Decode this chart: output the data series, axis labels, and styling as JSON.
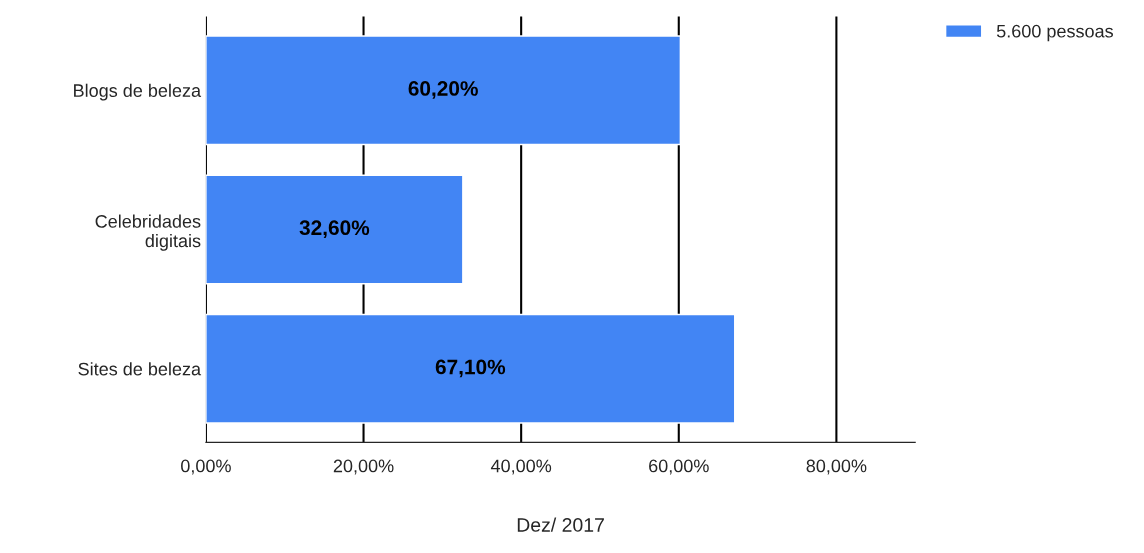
{
  "chart_data": {
    "type": "bar",
    "orientation": "horizontal",
    "categories": [
      "Blogs de beleza",
      "Celebridades\ndigitais",
      "Sites de beleza"
    ],
    "series": [
      {
        "name": "5.600 pessoas",
        "color": "#4285f4",
        "values": [
          60.2,
          32.6,
          67.1
        ],
        "value_labels": [
          "60,20%",
          "32,60%",
          "67,10%"
        ]
      }
    ],
    "xlabel": "Dez/ 2017",
    "xlim": [
      0,
      90
    ],
    "xticks": [
      {
        "value": 0,
        "label": "0,00%"
      },
      {
        "value": 20,
        "label": "20,00%"
      },
      {
        "value": 40,
        "label": "40,00%"
      },
      {
        "value": 60,
        "label": "60,00%"
      },
      {
        "value": 80,
        "label": "80,00%"
      }
    ],
    "grid": "x",
    "legend": "top right"
  }
}
